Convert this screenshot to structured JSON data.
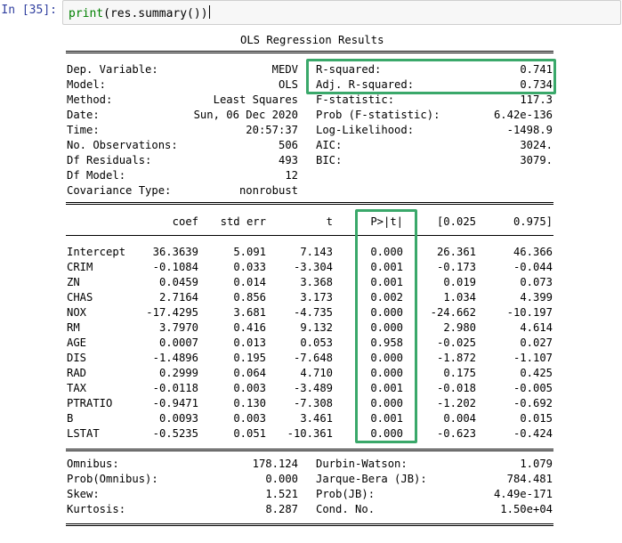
{
  "cell": {
    "prompt": "In [35]:",
    "code_fn": "print",
    "code_rest": "(res.summary())"
  },
  "summary": {
    "title": "OLS Regression Results",
    "top_left": [
      {
        "label": "Dep. Variable:",
        "value": "MEDV"
      },
      {
        "label": "Model:",
        "value": "OLS"
      },
      {
        "label": "Method:",
        "value": "Least Squares"
      },
      {
        "label": "Date:",
        "value": "Sun, 06 Dec 2020"
      },
      {
        "label": "Time:",
        "value": "20:57:37"
      },
      {
        "label": "No. Observations:",
        "value": "506"
      },
      {
        "label": "Df Residuals:",
        "value": "493"
      },
      {
        "label": "Df Model:",
        "value": "12"
      },
      {
        "label": "Covariance Type:",
        "value": "nonrobust"
      }
    ],
    "top_right": [
      {
        "label": "R-squared:",
        "value": "0.741"
      },
      {
        "label": "Adj. R-squared:",
        "value": "0.734"
      },
      {
        "label": "F-statistic:",
        "value": "117.3"
      },
      {
        "label": "Prob (F-statistic):",
        "value": "6.42e-136"
      },
      {
        "label": "Log-Likelihood:",
        "value": "-1498.9"
      },
      {
        "label": "AIC:",
        "value": "3024."
      },
      {
        "label": "BIC:",
        "value": "3079."
      }
    ],
    "coef_headers": [
      "coef",
      "std err",
      "t",
      "P>|t|",
      "[0.025",
      "0.975]"
    ],
    "coef_rows": [
      {
        "name": "Intercept",
        "vals": [
          "36.3639",
          "5.091",
          "7.143",
          "0.000",
          "26.361",
          "46.366"
        ]
      },
      {
        "name": "CRIM",
        "vals": [
          "-0.1084",
          "0.033",
          "-3.304",
          "0.001",
          "-0.173",
          "-0.044"
        ]
      },
      {
        "name": "ZN",
        "vals": [
          "0.0459",
          "0.014",
          "3.368",
          "0.001",
          "0.019",
          "0.073"
        ]
      },
      {
        "name": "CHAS",
        "vals": [
          "2.7164",
          "0.856",
          "3.173",
          "0.002",
          "1.034",
          "4.399"
        ]
      },
      {
        "name": "NOX",
        "vals": [
          "-17.4295",
          "3.681",
          "-4.735",
          "0.000",
          "-24.662",
          "-10.197"
        ]
      },
      {
        "name": "RM",
        "vals": [
          "3.7970",
          "0.416",
          "9.132",
          "0.000",
          "2.980",
          "4.614"
        ]
      },
      {
        "name": "AGE",
        "vals": [
          "0.0007",
          "0.013",
          "0.053",
          "0.958",
          "-0.025",
          "0.027"
        ]
      },
      {
        "name": "DIS",
        "vals": [
          "-1.4896",
          "0.195",
          "-7.648",
          "0.000",
          "-1.872",
          "-1.107"
        ]
      },
      {
        "name": "RAD",
        "vals": [
          "0.2999",
          "0.064",
          "4.710",
          "0.000",
          "0.175",
          "0.425"
        ]
      },
      {
        "name": "TAX",
        "vals": [
          "-0.0118",
          "0.003",
          "-3.489",
          "0.001",
          "-0.018",
          "-0.005"
        ]
      },
      {
        "name": "PTRATIO",
        "vals": [
          "-0.9471",
          "0.130",
          "-7.308",
          "0.000",
          "-1.202",
          "-0.692"
        ]
      },
      {
        "name": "B",
        "vals": [
          "0.0093",
          "0.003",
          "3.461",
          "0.001",
          "0.004",
          "0.015"
        ]
      },
      {
        "name": "LSTAT",
        "vals": [
          "-0.5235",
          "0.051",
          "-10.361",
          "0.000",
          "-0.623",
          "-0.424"
        ]
      }
    ],
    "bottom_left": [
      {
        "label": "Omnibus:",
        "value": "178.124"
      },
      {
        "label": "Prob(Omnibus):",
        "value": "0.000"
      },
      {
        "label": "Skew:",
        "value": "1.521"
      },
      {
        "label": "Kurtosis:",
        "value": "8.287"
      }
    ],
    "bottom_right": [
      {
        "label": "Durbin-Watson:",
        "value": "1.079"
      },
      {
        "label": "Jarque-Bera (JB):",
        "value": "784.481"
      },
      {
        "label": "Prob(JB):",
        "value": "4.49e-171"
      },
      {
        "label": "Cond. No.",
        "value": "1.50e+04"
      }
    ]
  },
  "highlight_color": "#3aa86a"
}
